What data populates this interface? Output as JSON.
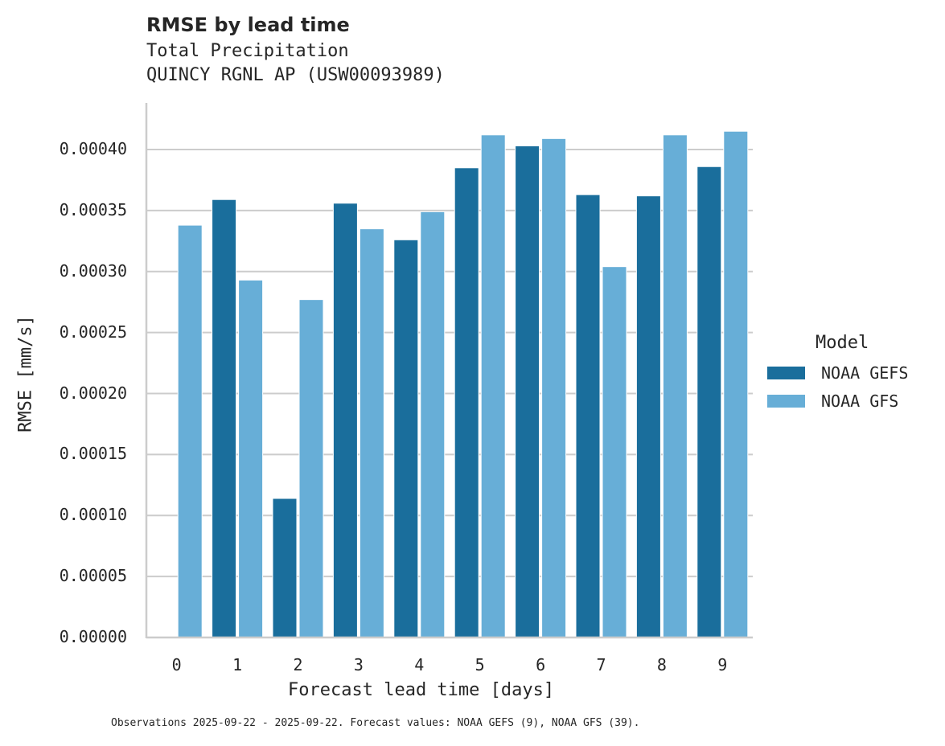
{
  "chart_data": {
    "type": "bar",
    "title": "RMSE by lead time",
    "subtitle_lines": [
      "Total Precipitation",
      "QUINCY RGNL AP (USW00093989)"
    ],
    "xlabel": "Forecast lead time [days]",
    "ylabel": "RMSE [mm/s]",
    "categories": [
      "0",
      "1",
      "2",
      "3",
      "4",
      "5",
      "6",
      "7",
      "8",
      "9"
    ],
    "series": [
      {
        "name": "NOAA GEFS",
        "color": "#1a6e9c",
        "values": [
          null,
          0.000359,
          0.000114,
          0.000356,
          0.000326,
          0.000385,
          0.000403,
          0.000363,
          0.000362,
          0.000386
        ]
      },
      {
        "name": "NOAA GFS",
        "color": "#67aed7",
        "values": [
          0.000338,
          0.000293,
          0.000277,
          0.000335,
          0.000349,
          0.000412,
          0.000409,
          0.000304,
          0.000412,
          0.000415
        ]
      }
    ],
    "yticks": [
      "0.00000",
      "0.00005",
      "0.00010",
      "0.00015",
      "0.00020",
      "0.00025",
      "0.00030",
      "0.00035",
      "0.00040"
    ],
    "ylim": [
      0,
      0.000437
    ],
    "grid": "horizontal",
    "legend": {
      "title": "Model",
      "position": "right"
    },
    "footnote": "Observations 2025-09-22 - 2025-09-22. Forecast values: NOAA GEFS (9), NOAA GFS (39)."
  }
}
